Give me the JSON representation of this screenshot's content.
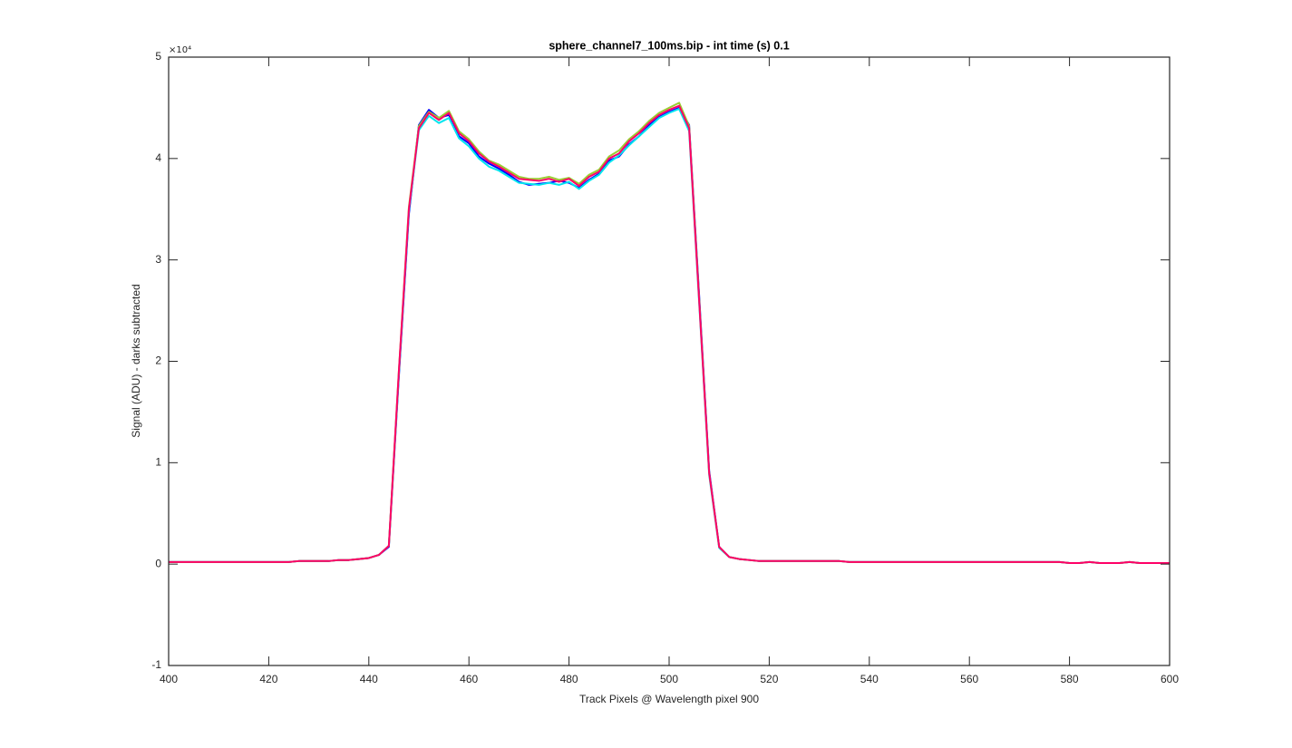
{
  "chart_data": {
    "type": "line",
    "title": "sphere_channel7_100ms.bip - int time (s) 0.1",
    "x_label": "Track Pixels @ Wavelength pixel 900",
    "y_label": "Signal (ADU) - darks subtracted",
    "y_multiplier": "×10⁴",
    "xlim": [
      400,
      600
    ],
    "xticks": [
      400,
      420,
      440,
      460,
      480,
      500,
      520,
      540,
      560,
      580,
      600
    ],
    "ylim": [
      -1,
      5
    ],
    "yticks": [
      -1,
      0,
      1,
      2,
      3,
      4,
      5
    ],
    "x": [
      400,
      402,
      404,
      406,
      408,
      410,
      412,
      414,
      416,
      418,
      420,
      422,
      424,
      426,
      428,
      430,
      432,
      434,
      436,
      438,
      440,
      442,
      444,
      446,
      448,
      450,
      452,
      454,
      456,
      458,
      460,
      462,
      464,
      466,
      468,
      470,
      472,
      474,
      476,
      478,
      480,
      482,
      484,
      486,
      488,
      490,
      492,
      494,
      496,
      498,
      500,
      502,
      504,
      506,
      508,
      510,
      512,
      514,
      516,
      518,
      520,
      522,
      524,
      526,
      528,
      530,
      532,
      534,
      536,
      538,
      540,
      542,
      544,
      546,
      548,
      550,
      552,
      554,
      556,
      558,
      560,
      562,
      564,
      566,
      568,
      570,
      572,
      574,
      576,
      578,
      580,
      582,
      584,
      586,
      588,
      590,
      592,
      594,
      596,
      598,
      600
    ],
    "series": [
      {
        "color": "#0000ff",
        "values": [
          0.02,
          0.02,
          0.02,
          0.02,
          0.02,
          0.02,
          0.02,
          0.02,
          0.02,
          0.02,
          0.02,
          0.02,
          0.02,
          0.03,
          0.03,
          0.03,
          0.03,
          0.04,
          0.04,
          0.05,
          0.06,
          0.09,
          0.17,
          1.85,
          3.45,
          4.33,
          4.48,
          4.4,
          4.43,
          4.22,
          4.15,
          4.02,
          3.95,
          3.9,
          3.84,
          3.77,
          3.74,
          3.75,
          3.76,
          3.78,
          3.76,
          3.71,
          3.79,
          3.85,
          3.98,
          4.02,
          4.14,
          4.22,
          4.33,
          4.41,
          4.46,
          4.5,
          4.33,
          2.65,
          0.92,
          0.17,
          0.07,
          0.05,
          0.04,
          0.03,
          0.03,
          0.03,
          0.03,
          0.03,
          0.03,
          0.03,
          0.03,
          0.03,
          0.02,
          0.02,
          0.02,
          0.02,
          0.02,
          0.02,
          0.02,
          0.02,
          0.02,
          0.02,
          0.02,
          0.02,
          0.02,
          0.02,
          0.02,
          0.02,
          0.02,
          0.02,
          0.02,
          0.02,
          0.02,
          0.02,
          0.01,
          0.01,
          0.02,
          0.01,
          0.01,
          0.01,
          0.02,
          0.01,
          0.01,
          0.01,
          0.01
        ]
      },
      {
        "color": "#00e5ee",
        "values": [
          0.02,
          0.02,
          0.02,
          0.02,
          0.02,
          0.02,
          0.02,
          0.02,
          0.02,
          0.02,
          0.02,
          0.02,
          0.02,
          0.03,
          0.03,
          0.03,
          0.03,
          0.04,
          0.04,
          0.05,
          0.06,
          0.09,
          0.18,
          1.88,
          3.48,
          4.28,
          4.42,
          4.35,
          4.4,
          4.2,
          4.12,
          4.0,
          3.92,
          3.88,
          3.82,
          3.76,
          3.75,
          3.74,
          3.76,
          3.74,
          3.77,
          3.7,
          3.78,
          3.84,
          3.96,
          4.03,
          4.13,
          4.22,
          4.31,
          4.4,
          4.45,
          4.49,
          4.27,
          2.58,
          0.88,
          0.16,
          0.07,
          0.05,
          0.04,
          0.03,
          0.03,
          0.03,
          0.03,
          0.03,
          0.03,
          0.03,
          0.03,
          0.03,
          0.02,
          0.02,
          0.02,
          0.02,
          0.02,
          0.02,
          0.02,
          0.02,
          0.02,
          0.02,
          0.02,
          0.02,
          0.02,
          0.02,
          0.02,
          0.02,
          0.02,
          0.02,
          0.02,
          0.02,
          0.02,
          0.02,
          0.01,
          0.01,
          0.02,
          0.01,
          0.01,
          0.01,
          0.02,
          0.01,
          0.01,
          0.01,
          0.01
        ]
      },
      {
        "color": "#9acd32",
        "values": [
          0.02,
          0.02,
          0.02,
          0.02,
          0.02,
          0.02,
          0.02,
          0.02,
          0.02,
          0.02,
          0.02,
          0.02,
          0.02,
          0.03,
          0.03,
          0.03,
          0.03,
          0.04,
          0.04,
          0.05,
          0.06,
          0.09,
          0.18,
          1.9,
          3.52,
          4.32,
          4.46,
          4.4,
          4.47,
          4.27,
          4.19,
          4.07,
          3.98,
          3.94,
          3.88,
          3.82,
          3.8,
          3.8,
          3.82,
          3.79,
          3.81,
          3.75,
          3.84,
          3.89,
          4.02,
          4.08,
          4.19,
          4.27,
          4.37,
          4.45,
          4.5,
          4.55,
          4.32,
          2.62,
          0.9,
          0.17,
          0.07,
          0.05,
          0.04,
          0.03,
          0.03,
          0.03,
          0.03,
          0.03,
          0.03,
          0.03,
          0.03,
          0.03,
          0.02,
          0.02,
          0.02,
          0.02,
          0.02,
          0.02,
          0.02,
          0.02,
          0.02,
          0.02,
          0.02,
          0.02,
          0.02,
          0.02,
          0.02,
          0.02,
          0.02,
          0.02,
          0.02,
          0.02,
          0.02,
          0.02,
          0.01,
          0.01,
          0.02,
          0.01,
          0.01,
          0.01,
          0.02,
          0.01,
          0.01,
          0.01,
          0.01
        ]
      },
      {
        "color": "#ff0066",
        "values": [
          0.02,
          0.02,
          0.02,
          0.02,
          0.02,
          0.02,
          0.02,
          0.02,
          0.02,
          0.02,
          0.02,
          0.02,
          0.02,
          0.03,
          0.03,
          0.03,
          0.03,
          0.04,
          0.04,
          0.05,
          0.06,
          0.09,
          0.18,
          1.9,
          3.5,
          4.3,
          4.45,
          4.38,
          4.45,
          4.25,
          4.17,
          4.05,
          3.97,
          3.92,
          3.86,
          3.8,
          3.79,
          3.78,
          3.8,
          3.77,
          3.8,
          3.73,
          3.82,
          3.87,
          4.0,
          4.05,
          4.17,
          4.25,
          4.35,
          4.43,
          4.48,
          4.52,
          4.3,
          2.6,
          0.9,
          0.17,
          0.07,
          0.05,
          0.04,
          0.03,
          0.03,
          0.03,
          0.03,
          0.03,
          0.03,
          0.03,
          0.03,
          0.03,
          0.02,
          0.02,
          0.02,
          0.02,
          0.02,
          0.02,
          0.02,
          0.02,
          0.02,
          0.02,
          0.02,
          0.02,
          0.02,
          0.02,
          0.02,
          0.02,
          0.02,
          0.02,
          0.02,
          0.02,
          0.02,
          0.02,
          0.01,
          0.01,
          0.02,
          0.01,
          0.01,
          0.01,
          0.02,
          0.01,
          0.01,
          0.01,
          0.01
        ]
      }
    ]
  }
}
